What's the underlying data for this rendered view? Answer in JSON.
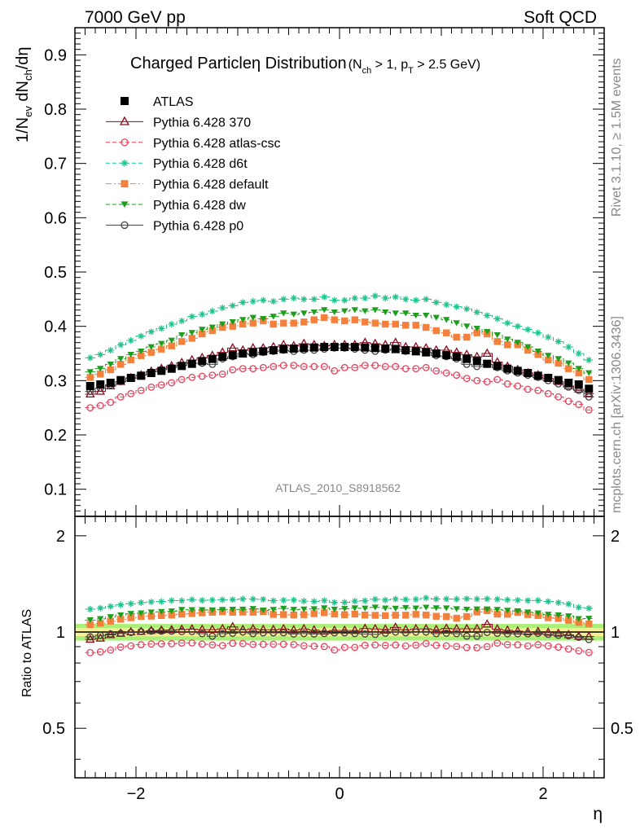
{
  "header": {
    "left": "7000 GeV pp",
    "right": "Soft QCD"
  },
  "side_text": {
    "rivet": "Rivet 3.1.10, ≥ 1.5M events",
    "mcplots": "mcplots.cern.ch [arXiv:1306.3436]"
  },
  "analysis_tag": "ATLAS_2010_S8918562",
  "colors": {
    "atlas": "#000000",
    "p370": "#8b0a1e",
    "atlas_csc": "#e8405a",
    "d6t": "#1ec38c",
    "default": "#f5803c",
    "dw": "#1e9e1e",
    "p0": "#404040",
    "band_inner": "#f5f096",
    "band_outer": "#aaf078"
  },
  "chart_data": {
    "type": "scatter",
    "title": "Charged Particleη Distribution",
    "title_cut": "(N_ch > 1, p_T > 2.5 GeV)",
    "title_cut_parts": {
      "open": "(N",
      "nch_sub": "ch",
      "mid": " > 1, p",
      "pt_sub": "T",
      "close": " > 2.5 GeV)"
    },
    "ylabel": "1/N_ev dN_ch/dη",
    "ylabel_parts": {
      "a": "1/N",
      "ev_sub": "ev",
      "b": " dN",
      "ch_sub": "ch",
      "c": "/dη"
    },
    "ratio_ylabel": "Ratio to ATLAS",
    "xlabel": "η",
    "xlim": [
      -2.6,
      2.6
    ],
    "ylim": [
      0.05,
      0.95
    ],
    "ratio_ylim": [
      0.35,
      2.3
    ],
    "x_ticks": [
      -2,
      0,
      2
    ],
    "x_tick_labels": [
      "−2",
      "0",
      "2"
    ],
    "y_ticks": [
      0.1,
      0.2,
      0.3,
      0.4,
      0.5,
      0.6,
      0.7,
      0.8,
      0.9
    ],
    "y_tick_labels": [
      "0.1",
      "0.2",
      "0.3",
      "0.4",
      "0.5",
      "0.6",
      "0.7",
      "0.8",
      "0.9"
    ],
    "ratio_ticks": [
      0.5,
      1,
      2
    ],
    "ratio_tick_labels": [
      "0.5",
      "1",
      "2"
    ],
    "legend_position": "top-left",
    "band": {
      "inner": 0.03,
      "outer": 0.06
    },
    "x": [
      -2.45,
      -2.35,
      -2.25,
      -2.15,
      -2.05,
      -1.95,
      -1.85,
      -1.75,
      -1.65,
      -1.55,
      -1.45,
      -1.35,
      -1.25,
      -1.15,
      -1.05,
      -0.95,
      -0.85,
      -0.75,
      -0.65,
      -0.55,
      -0.45,
      -0.35,
      -0.25,
      -0.15,
      -0.05,
      0.05,
      0.15,
      0.25,
      0.35,
      0.45,
      0.55,
      0.65,
      0.75,
      0.85,
      0.95,
      1.05,
      1.15,
      1.25,
      1.35,
      1.45,
      1.55,
      1.65,
      1.75,
      1.85,
      1.95,
      2.05,
      2.15,
      2.25,
      2.35,
      2.45
    ],
    "series": [
      {
        "name": "ATLAS",
        "key": "atlas",
        "marker": "square",
        "line": "none",
        "values": [
          0.29,
          0.293,
          0.296,
          0.301,
          0.305,
          0.309,
          0.314,
          0.318,
          0.322,
          0.327,
          0.331,
          0.336,
          0.34,
          0.344,
          0.347,
          0.35,
          0.352,
          0.354,
          0.356,
          0.358,
          0.359,
          0.36,
          0.361,
          0.362,
          0.362,
          0.362,
          0.362,
          0.361,
          0.36,
          0.359,
          0.358,
          0.356,
          0.354,
          0.352,
          0.35,
          0.347,
          0.344,
          0.34,
          0.336,
          0.331,
          0.327,
          0.322,
          0.318,
          0.314,
          0.309,
          0.305,
          0.301,
          0.296,
          0.293,
          0.285
        ]
      },
      {
        "name": "Pythia 6.428 370",
        "key": "p370",
        "marker": "triangle-open",
        "line": "solid",
        "values": [
          0.275,
          0.28,
          0.29,
          0.298,
          0.305,
          0.31,
          0.317,
          0.322,
          0.327,
          0.333,
          0.338,
          0.342,
          0.346,
          0.352,
          0.36,
          0.356,
          0.36,
          0.36,
          0.362,
          0.366,
          0.364,
          0.368,
          0.366,
          0.364,
          0.366,
          0.366,
          0.366,
          0.37,
          0.368,
          0.366,
          0.37,
          0.362,
          0.362,
          0.36,
          0.356,
          0.356,
          0.352,
          0.348,
          0.344,
          0.35,
          0.334,
          0.326,
          0.32,
          0.314,
          0.31,
          0.304,
          0.298,
          0.29,
          0.284,
          0.276
        ]
      },
      {
        "name": "Pythia 6.428 atlas-csc",
        "key": "atlas_csc",
        "marker": "circle-open",
        "line": "dashed",
        "values": [
          0.25,
          0.254,
          0.26,
          0.27,
          0.276,
          0.282,
          0.288,
          0.292,
          0.296,
          0.302,
          0.306,
          0.308,
          0.31,
          0.312,
          0.32,
          0.322,
          0.322,
          0.324,
          0.326,
          0.328,
          0.328,
          0.326,
          0.326,
          0.326,
          0.318,
          0.324,
          0.324,
          0.328,
          0.328,
          0.326,
          0.326,
          0.322,
          0.322,
          0.324,
          0.318,
          0.314,
          0.31,
          0.304,
          0.3,
          0.298,
          0.302,
          0.294,
          0.29,
          0.284,
          0.282,
          0.276,
          0.27,
          0.262,
          0.256,
          0.246
        ]
      },
      {
        "name": "Pythia 6.428 d6t",
        "key": "d6t",
        "marker": "star",
        "line": "dashed",
        "values": [
          0.342,
          0.348,
          0.356,
          0.366,
          0.374,
          0.382,
          0.39,
          0.396,
          0.404,
          0.41,
          0.418,
          0.422,
          0.428,
          0.434,
          0.438,
          0.444,
          0.446,
          0.448,
          0.446,
          0.45,
          0.452,
          0.45,
          0.45,
          0.454,
          0.448,
          0.448,
          0.452,
          0.452,
          0.456,
          0.452,
          0.454,
          0.45,
          0.448,
          0.45,
          0.444,
          0.44,
          0.436,
          0.432,
          0.426,
          0.42,
          0.414,
          0.406,
          0.4,
          0.394,
          0.388,
          0.38,
          0.372,
          0.362,
          0.35,
          0.338
        ]
      },
      {
        "name": "Pythia 6.428 default",
        "key": "default",
        "marker": "square",
        "line": "dashdot",
        "values": [
          0.306,
          0.312,
          0.32,
          0.33,
          0.338,
          0.346,
          0.352,
          0.358,
          0.364,
          0.372,
          0.378,
          0.386,
          0.392,
          0.398,
          0.4,
          0.404,
          0.406,
          0.41,
          0.404,
          0.406,
          0.406,
          0.408,
          0.412,
          0.416,
          0.412,
          0.41,
          0.412,
          0.408,
          0.406,
          0.404,
          0.404,
          0.402,
          0.402,
          0.398,
          0.392,
          0.388,
          0.38,
          0.38,
          0.388,
          0.386,
          0.372,
          0.366,
          0.366,
          0.356,
          0.348,
          0.338,
          0.332,
          0.322,
          0.314,
          0.302
        ]
      },
      {
        "name": "Pythia 6.428 dw",
        "key": "dw",
        "marker": "triangle-down",
        "line": "dashed",
        "values": [
          0.316,
          0.322,
          0.33,
          0.34,
          0.348,
          0.354,
          0.362,
          0.368,
          0.374,
          0.384,
          0.388,
          0.394,
          0.398,
          0.404,
          0.408,
          0.412,
          0.416,
          0.414,
          0.418,
          0.424,
          0.422,
          0.424,
          0.426,
          0.43,
          0.426,
          0.428,
          0.43,
          0.428,
          0.43,
          0.426,
          0.424,
          0.424,
          0.42,
          0.42,
          0.416,
          0.412,
          0.406,
          0.4,
          0.396,
          0.39,
          0.384,
          0.376,
          0.37,
          0.362,
          0.354,
          0.346,
          0.34,
          0.332,
          0.322,
          0.314
        ]
      },
      {
        "name": "Pythia 6.428 p0",
        "key": "p0",
        "marker": "circle-open",
        "line": "solid",
        "values": [
          0.28,
          0.286,
          0.292,
          0.298,
          0.304,
          0.31,
          0.316,
          0.32,
          0.324,
          0.328,
          0.332,
          0.332,
          0.33,
          0.34,
          0.344,
          0.35,
          0.348,
          0.352,
          0.354,
          0.356,
          0.354,
          0.356,
          0.356,
          0.358,
          0.36,
          0.36,
          0.358,
          0.356,
          0.354,
          0.356,
          0.358,
          0.354,
          0.354,
          0.352,
          0.346,
          0.344,
          0.34,
          0.33,
          0.326,
          0.33,
          0.324,
          0.318,
          0.314,
          0.31,
          0.306,
          0.3,
          0.294,
          0.288,
          0.282,
          0.27
        ]
      }
    ]
  }
}
